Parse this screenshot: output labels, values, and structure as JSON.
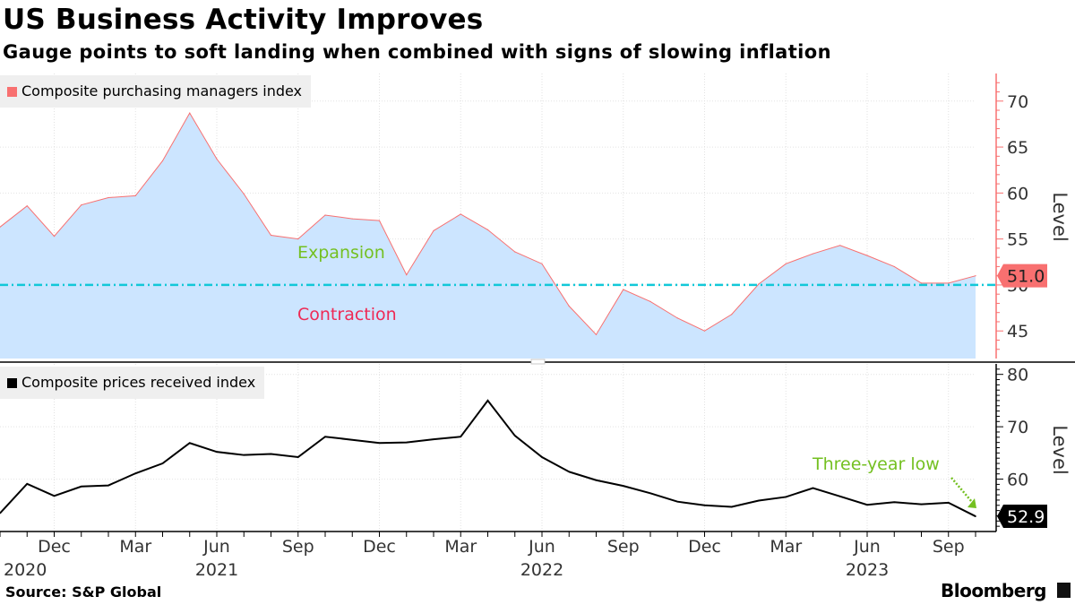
{
  "header": {
    "title": "US Business Activity Improves",
    "subtitle": "Gauge points to soft landing when combined with signs of slowing inflation"
  },
  "footer": {
    "source": "Source: S&P Global",
    "brand": "Bloomberg"
  },
  "chart_data": [
    {
      "type": "area",
      "title": "",
      "xlabel": "",
      "ylabel": "Level",
      "ylim": [
        42,
        73
      ],
      "yticks": [
        45,
        50,
        55,
        60,
        65,
        70
      ],
      "legend": "top-left",
      "series": [
        {
          "name": "Composite purchasing managers index",
          "color": "#f87070",
          "fill": "#cce5ff",
          "x": [
            "2020-10",
            "2020-11",
            "2020-12",
            "2021-01",
            "2021-02",
            "2021-03",
            "2021-04",
            "2021-05",
            "2021-06",
            "2021-07",
            "2021-08",
            "2021-09",
            "2021-10",
            "2021-11",
            "2021-12",
            "2022-01",
            "2022-02",
            "2022-03",
            "2022-04",
            "2022-05",
            "2022-06",
            "2022-07",
            "2022-08",
            "2022-09",
            "2022-10",
            "2022-11",
            "2022-12",
            "2023-01",
            "2023-02",
            "2023-03",
            "2023-04",
            "2023-05",
            "2023-06",
            "2023-07",
            "2023-08",
            "2023-09",
            "2023-10"
          ],
          "values": [
            56.3,
            58.6,
            55.3,
            58.7,
            59.5,
            59.7,
            63.5,
            68.7,
            63.7,
            59.9,
            55.4,
            55.0,
            57.6,
            57.2,
            57.0,
            51.1,
            55.9,
            57.7,
            56.0,
            53.6,
            52.3,
            47.7,
            44.6,
            49.5,
            48.2,
            46.4,
            45.0,
            46.8,
            50.1,
            52.3,
            53.4,
            54.3,
            53.2,
            52.0,
            50.2,
            50.2,
            51.0
          ]
        }
      ],
      "reference_line": {
        "value": 50,
        "color": "#12c8d8"
      },
      "annotations": [
        {
          "text": "Expansion",
          "color": "#74c021"
        },
        {
          "text": "Contraction",
          "color": "#ee2a55"
        }
      ],
      "last_value_label": {
        "text": "51.0",
        "color": "#f87070"
      }
    },
    {
      "type": "line",
      "title": "",
      "xlabel": "",
      "ylabel": "Level",
      "ylim": [
        50,
        82
      ],
      "yticks": [
        60,
        70,
        80
      ],
      "legend": "top-left",
      "series": [
        {
          "name": "Composite prices received index",
          "color": "#000000",
          "x": [
            "2020-10",
            "2020-11",
            "2020-12",
            "2021-01",
            "2021-02",
            "2021-03",
            "2021-04",
            "2021-05",
            "2021-06",
            "2021-07",
            "2021-08",
            "2021-09",
            "2021-10",
            "2021-11",
            "2021-12",
            "2022-01",
            "2022-02",
            "2022-03",
            "2022-04",
            "2022-05",
            "2022-06",
            "2022-07",
            "2022-08",
            "2022-09",
            "2022-10",
            "2022-11",
            "2022-12",
            "2023-01",
            "2023-02",
            "2023-03",
            "2023-04",
            "2023-05",
            "2023-06",
            "2023-07",
            "2023-08",
            "2023-09",
            "2023-10"
          ],
          "values": [
            53.5,
            59.1,
            56.8,
            58.6,
            58.8,
            61.1,
            63.0,
            66.9,
            65.2,
            64.6,
            64.8,
            64.2,
            68.1,
            67.5,
            66.9,
            67.0,
            67.6,
            68.1,
            75.0,
            68.3,
            64.2,
            61.4,
            59.8,
            58.7,
            57.3,
            55.7,
            55.0,
            54.7,
            55.9,
            56.6,
            58.3,
            56.7,
            55.1,
            55.6,
            55.2,
            55.5,
            52.9
          ]
        }
      ],
      "annotations": [
        {
          "text": "Three-year low",
          "color": "#74c021"
        }
      ],
      "last_value_label": {
        "text": "52.9",
        "color": "#000000"
      }
    }
  ],
  "x_axis": {
    "ticks": [
      {
        "date": "2020-12",
        "label": "Dec"
      },
      {
        "date": "2021-03",
        "label": "Mar"
      },
      {
        "date": "2021-06",
        "label": "Jun"
      },
      {
        "date": "2021-09",
        "label": "Sep"
      },
      {
        "date": "2021-12",
        "label": "Dec"
      },
      {
        "date": "2022-03",
        "label": "Mar"
      },
      {
        "date": "2022-06",
        "label": "Jun"
      },
      {
        "date": "2022-09",
        "label": "Sep"
      },
      {
        "date": "2022-12",
        "label": "Dec"
      },
      {
        "date": "2023-03",
        "label": "Mar"
      },
      {
        "date": "2023-06",
        "label": "Jun"
      },
      {
        "date": "2023-09",
        "label": "Sep"
      }
    ],
    "years": [
      {
        "date": "2020-10",
        "label": "2020"
      },
      {
        "date": "2021-06",
        "label": "2021"
      },
      {
        "date": "2022-06",
        "label": "2022"
      },
      {
        "date": "2023-06",
        "label": "2023"
      }
    ]
  }
}
